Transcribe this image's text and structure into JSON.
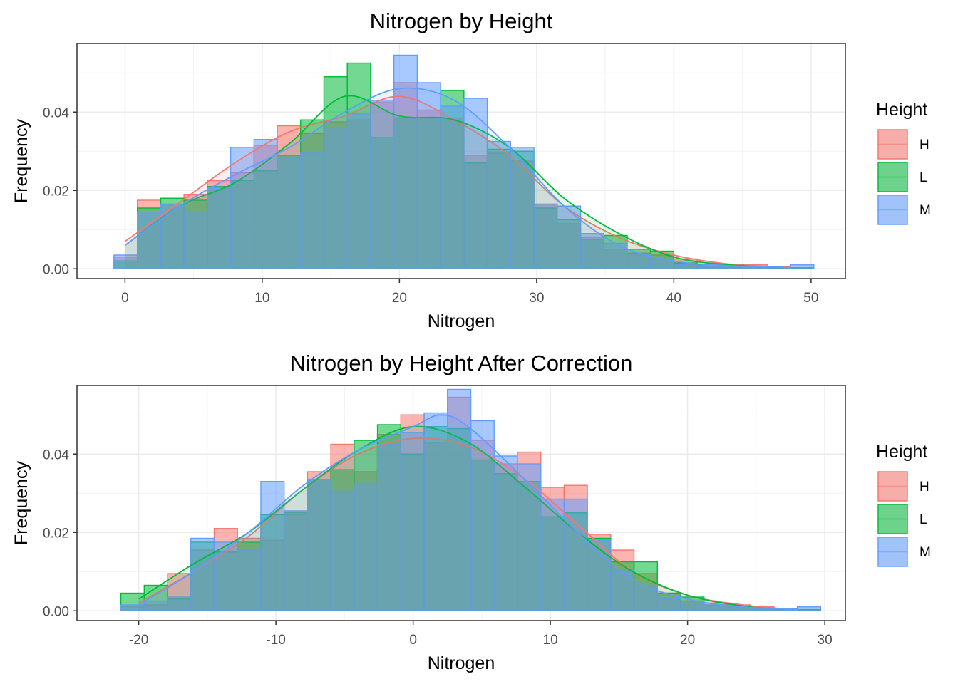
{
  "colors": {
    "H": "#F8766D",
    "L": "#00BA38",
    "M": "#619CFF"
  },
  "chart_data": [
    {
      "type": "histogram",
      "title": "Nitrogen by Height",
      "xlabel": "Nitrogen",
      "ylabel": "Frequency",
      "xlim": [
        -3.5,
        52.5
      ],
      "ylim": [
        -0.0025,
        0.0575
      ],
      "x_ticks": [
        0,
        10,
        20,
        30,
        40,
        50
      ],
      "x_tick_labels": [
        "0",
        "10",
        "20",
        "30",
        "40",
        "50"
      ],
      "y_ticks": [
        0,
        0.02,
        0.04
      ],
      "y_tick_labels": [
        "0.00",
        "0.02",
        "0.04"
      ],
      "grid": true,
      "legend": {
        "title": "Height",
        "position": "right",
        "entries": [
          "H",
          "L",
          "M"
        ]
      },
      "bins": [
        -0.8,
        0.9,
        2.6,
        4.3,
        6,
        7.7,
        9.4,
        11.1,
        12.8,
        14.5,
        16.2,
        17.9,
        19.6,
        21.3,
        23,
        24.7,
        26.4,
        28.1,
        29.8,
        31.5,
        33.2,
        34.9,
        36.6,
        38.3,
        40,
        41.7,
        43.4,
        45.1,
        46.8,
        48.5,
        50.2
      ],
      "series": [
        {
          "name": "H",
          "values": [
            0.003,
            0.0175,
            0.0165,
            0.019,
            0.0225,
            0.0245,
            0.0315,
            0.0365,
            0.0345,
            0.0375,
            0.038,
            0.0425,
            0.0475,
            0.0405,
            0.0385,
            0.029,
            0.0295,
            0.0275,
            0.0165,
            0.0115,
            0.008,
            0.005,
            0.004,
            0.0035,
            0.0025,
            0.0005,
            0.0005,
            0.001,
            0.0005,
            0.0003
          ],
          "density": [
            [
              0,
              0.007
            ],
            [
              4,
              0.017
            ],
            [
              8,
              0.027
            ],
            [
              12,
              0.035
            ],
            [
              16,
              0.039
            ],
            [
              20,
              0.044
            ],
            [
              24,
              0.038
            ],
            [
              28,
              0.029
            ],
            [
              32,
              0.016
            ],
            [
              36,
              0.008
            ],
            [
              40,
              0.0035
            ],
            [
              44,
              0.0012
            ],
            [
              48,
              0.0004
            ]
          ]
        },
        {
          "name": "L",
          "values": [
            0.002,
            0.0155,
            0.018,
            0.0175,
            0.021,
            0.0225,
            0.025,
            0.029,
            0.038,
            0.049,
            0.0525,
            0.0335,
            0.0385,
            0.0385,
            0.0455,
            0.027,
            0.0305,
            0.03,
            0.0155,
            0.0125,
            0.0075,
            0.0085,
            0.005,
            0.0045,
            0.0015,
            0.001,
            0.001,
            0.0005,
            0.0003,
            0.0002
          ],
          "density": [
            [
              0,
              0.006
            ],
            [
              4,
              0.016
            ],
            [
              8,
              0.022
            ],
            [
              12,
              0.032
            ],
            [
              16,
              0.044
            ],
            [
              20,
              0.039
            ],
            [
              24,
              0.038
            ],
            [
              28,
              0.031
            ],
            [
              32,
              0.018
            ],
            [
              36,
              0.009
            ],
            [
              40,
              0.003
            ],
            [
              44,
              0.001
            ],
            [
              48,
              0.0003
            ]
          ]
        },
        {
          "name": "M",
          "values": [
            0.0035,
            0.0145,
            0.0165,
            0.0145,
            0.0205,
            0.031,
            0.033,
            0.0285,
            0.0295,
            0.036,
            0.0395,
            0.043,
            0.0545,
            0.0475,
            0.0415,
            0.0435,
            0.0325,
            0.031,
            0.0165,
            0.016,
            0.009,
            0.0065,
            0.0035,
            0.0025,
            0.001,
            0.0005,
            0.0005,
            0.0005,
            0.0003,
            0.001
          ],
          "density": [
            [
              0,
              0.006
            ],
            [
              4,
              0.016
            ],
            [
              8,
              0.024
            ],
            [
              12,
              0.031
            ],
            [
              16,
              0.04
            ],
            [
              20,
              0.046
            ],
            [
              24,
              0.043
            ],
            [
              28,
              0.031
            ],
            [
              32,
              0.016
            ],
            [
              36,
              0.006
            ],
            [
              40,
              0.002
            ],
            [
              44,
              0.0008
            ],
            [
              48,
              0.0004
            ]
          ]
        }
      ]
    },
    {
      "type": "histogram",
      "title": "Nitrogen by Height After Correction",
      "xlabel": "Nitrogen",
      "ylabel": "Frequency",
      "xlim": [
        -24.5,
        31.5
      ],
      "ylim": [
        -0.0025,
        0.0575
      ],
      "x_ticks": [
        -20,
        -10,
        0,
        10,
        20,
        30
      ],
      "x_tick_labels": [
        "-20",
        "-10",
        "0",
        "10",
        "20",
        "30"
      ],
      "y_ticks": [
        0,
        0.02,
        0.04
      ],
      "y_tick_labels": [
        "0.00",
        "0.02",
        "0.04"
      ],
      "grid": true,
      "legend": {
        "title": "Height",
        "position": "right",
        "entries": [
          "H",
          "L",
          "M"
        ]
      },
      "bins": [
        -21.3,
        -19.6,
        -17.9,
        -16.2,
        -14.5,
        -12.8,
        -11.1,
        -9.4,
        -7.7,
        -6,
        -4.3,
        -2.6,
        -0.9,
        0.8,
        2.5,
        4.2,
        5.9,
        7.6,
        9.3,
        11,
        12.7,
        14.4,
        16.1,
        17.8,
        19.5,
        21.2,
        22.9,
        24.6,
        26.3,
        28,
        29.7
      ],
      "series": [
        {
          "name": "H",
          "values": [
            0.001,
            0.0015,
            0.0095,
            0.0155,
            0.021,
            0.0185,
            0.018,
            0.0245,
            0.0355,
            0.0425,
            0.0355,
            0.045,
            0.05,
            0.043,
            0.0545,
            0.0435,
            0.0375,
            0.0405,
            0.0315,
            0.032,
            0.0195,
            0.0155,
            0.0095,
            0.0045,
            0.0025,
            0.002,
            0.0015,
            0.001,
            0.0005,
            0.0003
          ],
          "density": [
            [
              -20,
              0.002
            ],
            [
              -16,
              0.01
            ],
            [
              -12,
              0.019
            ],
            [
              -8,
              0.031
            ],
            [
              -4,
              0.04
            ],
            [
              0,
              0.044
            ],
            [
              4,
              0.042
            ],
            [
              8,
              0.034
            ],
            [
              12,
              0.022
            ],
            [
              16,
              0.01
            ],
            [
              20,
              0.004
            ],
            [
              24,
              0.0015
            ],
            [
              27,
              0.0005
            ]
          ]
        },
        {
          "name": "L",
          "values": [
            0.0045,
            0.0065,
            0.003,
            0.0175,
            0.015,
            0.0175,
            0.0245,
            0.025,
            0.0335,
            0.036,
            0.0435,
            0.0475,
            0.04,
            0.047,
            0.0465,
            0.0385,
            0.035,
            0.033,
            0.024,
            0.025,
            0.0185,
            0.0125,
            0.0125,
            0.0045,
            0.0035,
            0.0015,
            0.001,
            0.0005,
            0.0005,
            0.0003
          ],
          "density": [
            [
              -20,
              0.003
            ],
            [
              -16,
              0.012
            ],
            [
              -12,
              0.02
            ],
            [
              -8,
              0.031
            ],
            [
              -4,
              0.041
            ],
            [
              0,
              0.047
            ],
            [
              4,
              0.043
            ],
            [
              8,
              0.032
            ],
            [
              12,
              0.02
            ],
            [
              16,
              0.01
            ],
            [
              20,
              0.004
            ],
            [
              24,
              0.0012
            ],
            [
              27,
              0.0004
            ]
          ]
        },
        {
          "name": "M",
          "values": [
            0.0015,
            0.0025,
            0.0035,
            0.0185,
            0.0175,
            0.0155,
            0.033,
            0.0255,
            0.0335,
            0.0305,
            0.0325,
            0.0425,
            0.0455,
            0.0505,
            0.0565,
            0.0485,
            0.0395,
            0.0375,
            0.0285,
            0.0285,
            0.018,
            0.0105,
            0.0065,
            0.003,
            0.002,
            0.0015,
            0.001,
            0.0005,
            0.0005,
            0.001
          ],
          "density": [
            [
              -20,
              0.0015
            ],
            [
              -16,
              0.01
            ],
            [
              -12,
              0.02
            ],
            [
              -8,
              0.032
            ],
            [
              -4,
              0.041
            ],
            [
              0,
              0.047
            ],
            [
              2,
              0.05
            ],
            [
              4,
              0.047
            ],
            [
              8,
              0.034
            ],
            [
              12,
              0.02
            ],
            [
              16,
              0.008
            ],
            [
              20,
              0.003
            ],
            [
              24,
              0.001
            ],
            [
              28,
              0.0004
            ]
          ]
        }
      ]
    }
  ]
}
